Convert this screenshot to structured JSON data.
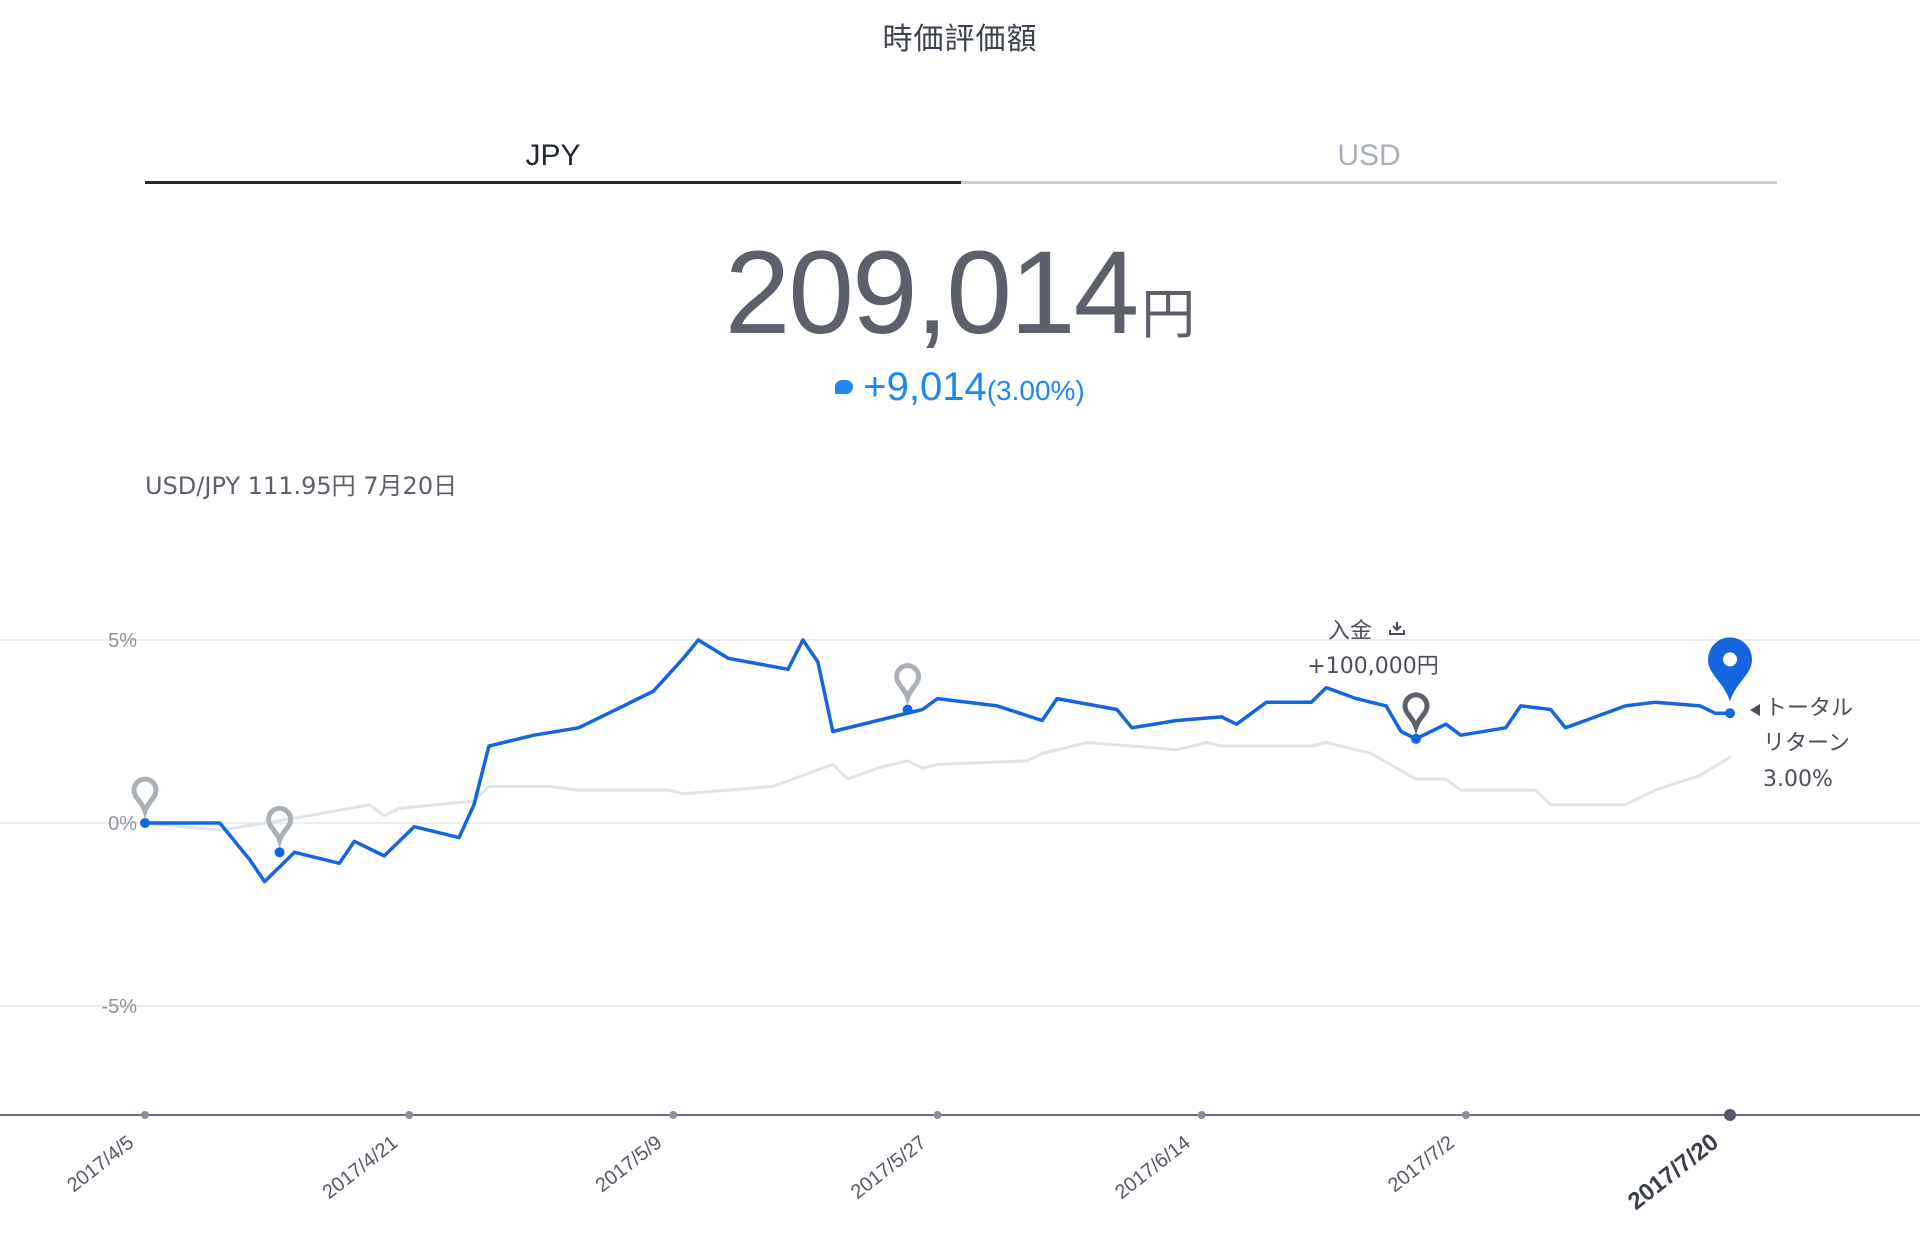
{
  "page": {
    "title": "時価評価額"
  },
  "tabs": [
    {
      "label": "JPY",
      "active": true
    },
    {
      "label": "USD",
      "active": false
    }
  ],
  "summary": {
    "amount": "209,014",
    "unit": "円",
    "change": "+9,014",
    "change_pct": "(3.00%)"
  },
  "fx": {
    "text": "USD/JPY 111.95円 7月20日"
  },
  "colors": {
    "accent": "#1565e0",
    "benchmark": "#dfe3ea",
    "marker_grey": "#aab0b8",
    "marker_dark": "#5c616c"
  },
  "chart_data": {
    "type": "line",
    "y_ticks": [
      "5%",
      "0%",
      "-5%"
    ],
    "y_values": [
      5,
      0,
      -5
    ],
    "ylim": [
      -8,
      6
    ],
    "x_tick_labels": [
      "2017/4/5",
      "2017/4/21",
      "2017/5/9",
      "2017/5/27",
      "2017/6/14",
      "2017/7/2",
      "2017/7/20"
    ],
    "xlim": [
      "2017/4/5",
      "2017/7/20"
    ],
    "series": [
      {
        "role": "portfolio",
        "color": "#1565e0",
        "points": [
          [
            "2017/4/5",
            0.0
          ],
          [
            "2017/4/10",
            0.0
          ],
          [
            "2017/4/12",
            -1.0
          ],
          [
            "2017/4/13",
            -1.6
          ],
          [
            "2017/4/15",
            -0.8
          ],
          [
            "2017/4/18",
            -1.1
          ],
          [
            "2017/4/19",
            -0.5
          ],
          [
            "2017/4/21",
            -0.9
          ],
          [
            "2017/4/23",
            -0.1
          ],
          [
            "2017/4/26",
            -0.4
          ],
          [
            "2017/4/27",
            0.5
          ],
          [
            "2017/4/28",
            2.1
          ],
          [
            "2017/5/1",
            2.4
          ],
          [
            "2017/5/4",
            2.6
          ],
          [
            "2017/5/7",
            3.2
          ],
          [
            "2017/5/9",
            3.6
          ],
          [
            "2017/5/11",
            4.5
          ],
          [
            "2017/5/12",
            5.0
          ],
          [
            "2017/5/14",
            4.5
          ],
          [
            "2017/5/18",
            4.2
          ],
          [
            "2017/5/19",
            5.0
          ],
          [
            "2017/5/20",
            4.4
          ],
          [
            "2017/5/21",
            2.5
          ],
          [
            "2017/5/24",
            2.8
          ],
          [
            "2017/5/27",
            3.1
          ],
          [
            "2017/5/28",
            3.4
          ],
          [
            "2017/6/1",
            3.2
          ],
          [
            "2017/6/4",
            2.8
          ],
          [
            "2017/6/5",
            3.4
          ],
          [
            "2017/6/9",
            3.1
          ],
          [
            "2017/6/10",
            2.6
          ],
          [
            "2017/6/13",
            2.8
          ],
          [
            "2017/6/16",
            2.9
          ],
          [
            "2017/6/17",
            2.7
          ],
          [
            "2017/6/19",
            3.3
          ],
          [
            "2017/6/22",
            3.3
          ],
          [
            "2017/6/23",
            3.7
          ],
          [
            "2017/6/25",
            3.4
          ],
          [
            "2017/6/27",
            3.2
          ],
          [
            "2017/6/28",
            2.5
          ],
          [
            "2017/6/29",
            2.3
          ],
          [
            "2017/7/1",
            2.7
          ],
          [
            "2017/7/2",
            2.4
          ],
          [
            "2017/7/5",
            2.6
          ],
          [
            "2017/7/6",
            3.2
          ],
          [
            "2017/7/8",
            3.1
          ],
          [
            "2017/7/9",
            2.6
          ],
          [
            "2017/7/11",
            2.9
          ],
          [
            "2017/7/13",
            3.2
          ],
          [
            "2017/7/15",
            3.3
          ],
          [
            "2017/7/18",
            3.2
          ],
          [
            "2017/7/19",
            3.0
          ],
          [
            "2017/7/20",
            3.0
          ]
        ]
      },
      {
        "role": "benchmark",
        "color": "#dfe3ea",
        "points": [
          [
            "2017/4/5",
            0.0
          ],
          [
            "2017/4/10",
            -0.2
          ],
          [
            "2017/4/13",
            0.0
          ],
          [
            "2017/4/16",
            0.2
          ],
          [
            "2017/4/20",
            0.5
          ],
          [
            "2017/4/21",
            0.2
          ],
          [
            "2017/4/22",
            0.4
          ],
          [
            "2017/4/27",
            0.6
          ],
          [
            "2017/4/28",
            1.0
          ],
          [
            "2017/5/2",
            1.0
          ],
          [
            "2017/5/4",
            0.9
          ],
          [
            "2017/5/10",
            0.9
          ],
          [
            "2017/5/11",
            0.8
          ],
          [
            "2017/5/14",
            0.9
          ],
          [
            "2017/5/17",
            1.0
          ],
          [
            "2017/5/19",
            1.3
          ],
          [
            "2017/5/21",
            1.6
          ],
          [
            "2017/5/22",
            1.2
          ],
          [
            "2017/5/24",
            1.5
          ],
          [
            "2017/5/26",
            1.7
          ],
          [
            "2017/5/27",
            1.5
          ],
          [
            "2017/5/28",
            1.6
          ],
          [
            "2017/6/3",
            1.7
          ],
          [
            "2017/6/4",
            1.9
          ],
          [
            "2017/6/7",
            2.2
          ],
          [
            "2017/6/10",
            2.1
          ],
          [
            "2017/6/13",
            2.0
          ],
          [
            "2017/6/15",
            2.2
          ],
          [
            "2017/6/16",
            2.1
          ],
          [
            "2017/6/22",
            2.1
          ],
          [
            "2017/6/23",
            2.2
          ],
          [
            "2017/6/26",
            1.9
          ],
          [
            "2017/6/29",
            1.2
          ],
          [
            "2017/7/1",
            1.2
          ],
          [
            "2017/7/2",
            0.9
          ],
          [
            "2017/7/7",
            0.9
          ],
          [
            "2017/7/8",
            0.5
          ],
          [
            "2017/7/13",
            0.5
          ],
          [
            "2017/7/15",
            0.9
          ],
          [
            "2017/7/18",
            1.3
          ],
          [
            "2017/7/20",
            1.8
          ]
        ]
      }
    ],
    "markers": [
      {
        "date": "2017/4/5",
        "value": 0.0,
        "style": "grey"
      },
      {
        "date": "2017/4/14",
        "value": -0.8,
        "style": "grey"
      },
      {
        "date": "2017/5/26",
        "value": 3.1,
        "style": "grey"
      },
      {
        "date": "2017/6/29",
        "value": 2.3,
        "style": "dark"
      },
      {
        "date": "2017/7/20",
        "value": 3.0,
        "style": "blue"
      }
    ],
    "annotations": {
      "deposit_label": "入金",
      "deposit_amount": "+100,000円",
      "total_return_line1": "トータル",
      "total_return_line2": "リターン",
      "total_return_value": "3.00%"
    }
  }
}
